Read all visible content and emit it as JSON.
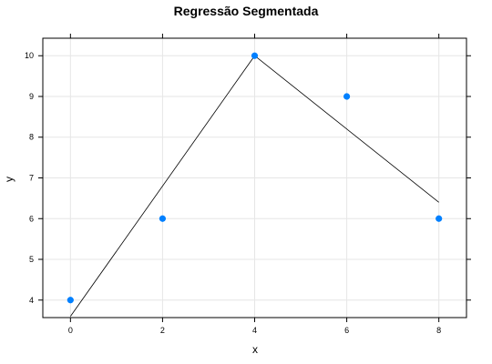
{
  "chart_data": {
    "type": "scatter",
    "title": "Regressão Segmentada",
    "xlabel": "x",
    "ylabel": "y",
    "xlim": [
      -0.6,
      8.6
    ],
    "ylim": [
      3.57,
      10.43
    ],
    "x_ticks": [
      0,
      2,
      4,
      6,
      8
    ],
    "y_ticks": [
      4,
      5,
      6,
      7,
      8,
      9,
      10
    ],
    "grid": true,
    "point_color": "#0080ff",
    "points": [
      {
        "x": 0,
        "y": 4
      },
      {
        "x": 2,
        "y": 6
      },
      {
        "x": 4,
        "y": 10
      },
      {
        "x": 6,
        "y": 9
      },
      {
        "x": 8,
        "y": 6
      }
    ],
    "fitted_line": [
      {
        "x": 0,
        "y": 3.6
      },
      {
        "x": 4,
        "y": 10
      },
      {
        "x": 8,
        "y": 6.4
      }
    ]
  }
}
